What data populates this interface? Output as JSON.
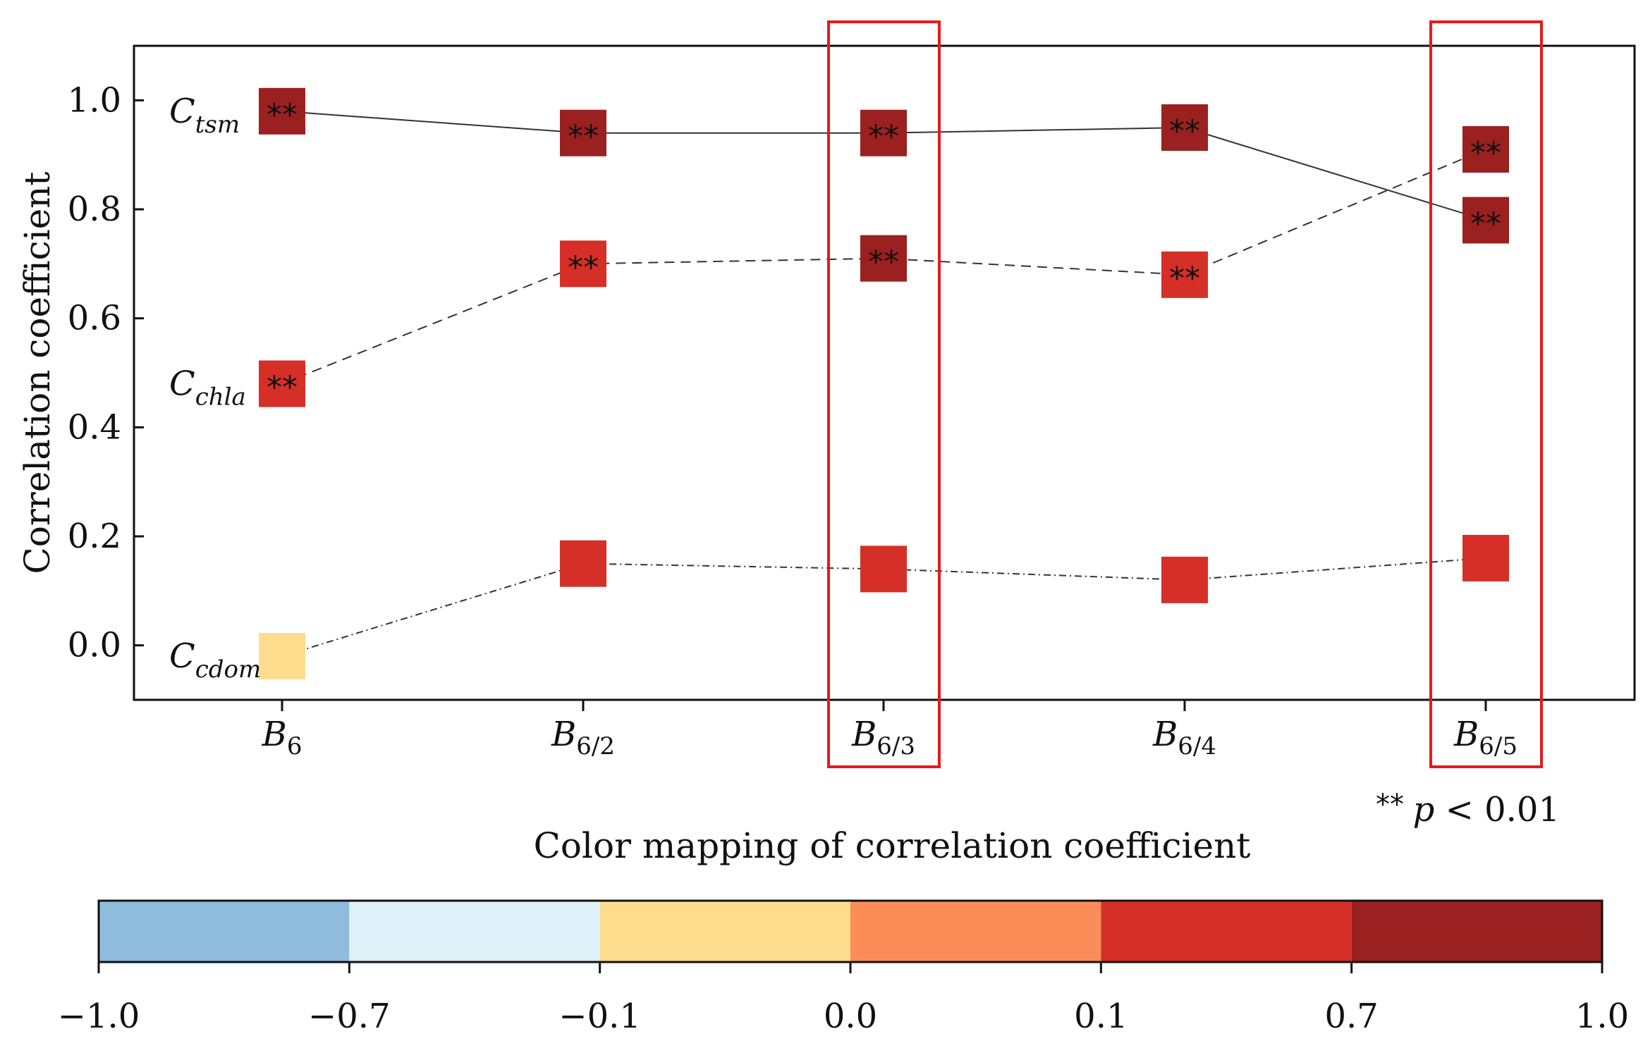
{
  "chart_data": {
    "type": "line",
    "title": "",
    "xlabel": "",
    "ylabel": "Correlation coefficient",
    "ylim": [
      -0.1,
      1.1
    ],
    "yticks": [
      "0.0",
      "0.2",
      "0.4",
      "0.6",
      "0.8",
      "1.0"
    ],
    "categories": [
      {
        "base": "B",
        "sub": "6"
      },
      {
        "base": "B",
        "sub": "6/2"
      },
      {
        "base": "B",
        "sub": "6/3"
      },
      {
        "base": "B",
        "sub": "6/4"
      },
      {
        "base": "B",
        "sub": "6/5"
      }
    ],
    "highlighted_categories": [
      2,
      4
    ],
    "series": [
      {
        "name": "C_tsm",
        "label_base": "C",
        "label_sub": "tsm",
        "line_style": "solid",
        "values": [
          0.98,
          0.94,
          0.94,
          0.95,
          0.78
        ],
        "colors": [
          "#9b2020",
          "#9b2020",
          "#9b2020",
          "#9b2020",
          "#9b2020"
        ],
        "significance": [
          "**",
          "**",
          "**",
          "**",
          "**"
        ]
      },
      {
        "name": "C_chla",
        "label_base": "C",
        "label_sub": "chla",
        "line_style": "dashed",
        "values": [
          0.48,
          0.7,
          0.71,
          0.68,
          0.91
        ],
        "colors": [
          "#d62f27",
          "#d62f27",
          "#9b2020",
          "#d62f27",
          "#9b2020"
        ],
        "significance": [
          "**",
          "**",
          "**",
          "**",
          "**"
        ]
      },
      {
        "name": "C_cdom",
        "label_base": "C",
        "label_sub": "cdom",
        "line_style": "dashdot",
        "values": [
          -0.02,
          0.15,
          0.14,
          0.12,
          0.16
        ],
        "colors": [
          "#fedc8e",
          "#d62f27",
          "#d62f27",
          "#d62f27",
          "#d62f27"
        ],
        "significance": [
          "",
          "",
          "",
          "",
          ""
        ]
      }
    ],
    "significance_note": {
      "stars": "**",
      "p": "p",
      "rest": " < 0.01"
    },
    "colorbar": {
      "title": "Color mapping of correlation coefficient",
      "ticks": [
        "−1.0",
        "−0.7",
        "−0.1",
        "0.0",
        "0.1",
        "0.7",
        "1.0"
      ],
      "colors": [
        "#8fbcdc",
        "#dff1f8",
        "#fedc8e",
        "#fc8d59",
        "#d62f27",
        "#9b2020"
      ]
    }
  }
}
